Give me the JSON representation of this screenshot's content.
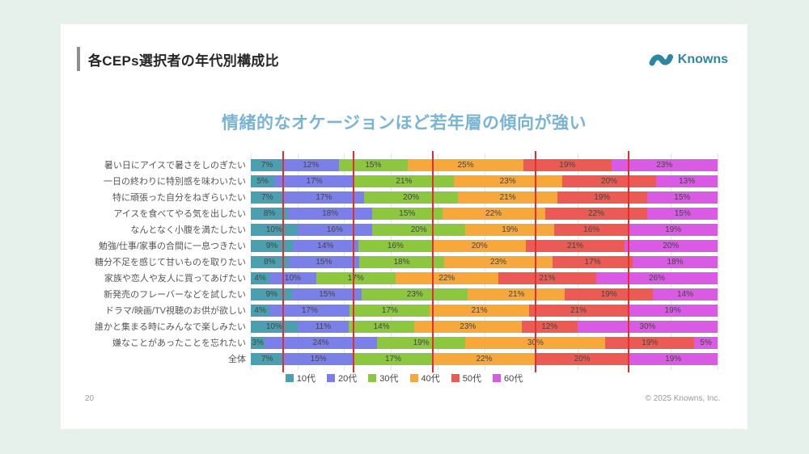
{
  "header": {
    "title": "各CEPs選択者の年代別構成比"
  },
  "logo": {
    "text": "Knowns",
    "color": "#2F86A0"
  },
  "chart_headline": "情緒的なオケージョンほど若年層の傾向が強い",
  "chart_data": {
    "type": "bar",
    "orientation": "horizontal-stacked",
    "unit": "%",
    "xlim": [
      0,
      100
    ],
    "gridline_step_pct": 10,
    "legend_position": "bottom",
    "categories": [
      "暑い日にアイスで暑さをしのぎたい",
      "一日の終わりに特別感を味わいたい",
      "特に頑張った自分をねぎらいたい",
      "アイスを食べてやる気を出したい",
      "なんとなく小腹を満たしたい",
      "勉強/仕事/家事の合間に一息つきたい",
      "糖分不足を感じて甘いものを取りたい",
      "家族や恋人や友人に買ってあげたい",
      "新発売のフレーバーなどを試したい",
      "ドラマ/映画/TV視聴のお供が欲しい",
      "誰かと集まる時にみんなで楽しみたい",
      "嫌なことがあったことを忘れたい",
      "全体"
    ],
    "series": [
      {
        "name": "10代",
        "color": "#4AA0AE",
        "values": [
          7,
          5,
          7,
          8,
          10,
          9,
          8,
          4,
          9,
          4,
          10,
          3,
          7
        ]
      },
      {
        "name": "20代",
        "color": "#7B7FE8",
        "values": [
          12,
          17,
          17,
          18,
          16,
          14,
          15,
          10,
          15,
          17,
          11,
          24,
          15
        ]
      },
      {
        "name": "30代",
        "color": "#8DC63F",
        "values": [
          15,
          21,
          20,
          15,
          20,
          16,
          18,
          17,
          23,
          17,
          14,
          19,
          17
        ]
      },
      {
        "name": "40代",
        "color": "#F6A83C",
        "values": [
          25,
          23,
          21,
          22,
          19,
          20,
          23,
          22,
          21,
          21,
          23,
          30,
          22
        ]
      },
      {
        "name": "50代",
        "color": "#EA5B55",
        "values": [
          19,
          20,
          19,
          22,
          16,
          21,
          17,
          21,
          19,
          21,
          12,
          19,
          20
        ]
      },
      {
        "name": "60代",
        "color": "#D95BE3",
        "values": [
          23,
          13,
          15,
          15,
          19,
          20,
          18,
          26,
          14,
          19,
          30,
          5,
          19
        ]
      }
    ],
    "reference_lines_x_pct": [
      7,
      22,
      39,
      61,
      81
    ],
    "reference_line_color": "#DF2F2F"
  },
  "footer": {
    "page_number": "20",
    "copyright": "© 2025 Knowns, Inc."
  }
}
